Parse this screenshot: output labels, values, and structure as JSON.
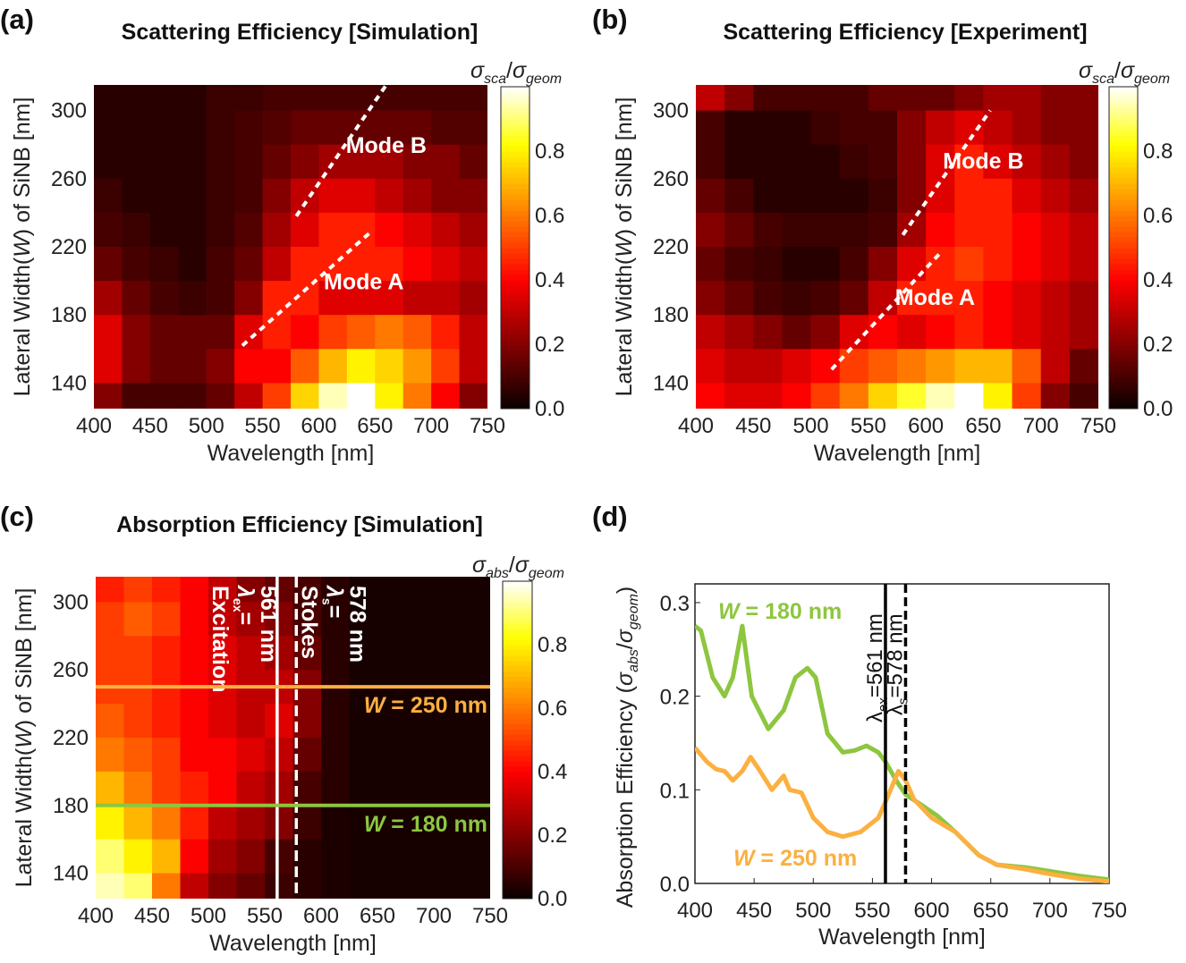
{
  "panel_labels": [
    "(a)",
    "(b)",
    "(c)",
    "(d)"
  ],
  "colors": {
    "green": "#8dc63f",
    "orange": "#fbb040",
    "white": "#ffffff",
    "black": "#000000"
  },
  "chart_data": [
    {
      "type": "heatmap",
      "title": "Scattering Efficiency [Simulation]",
      "xlabel": "Wavelength [nm]",
      "ylabel": {
        "pre": "Lateral Width(",
        "italic": "W",
        "post": ") of SiNB [nm]"
      },
      "colorbar_label": {
        "sigma1": "σ",
        "sub1": "sca",
        "slash": "/",
        "sigma2": "σ",
        "sub2": "geom"
      },
      "colormap": "hot",
      "clim": [
        0,
        1
      ],
      "colorbar_ticks": [
        "0.0",
        "0.2",
        "0.4",
        "0.6",
        "0.8"
      ],
      "xlim": [
        400,
        750
      ],
      "ylim": [
        125,
        315
      ],
      "xticks": [
        400,
        450,
        500,
        550,
        600,
        650,
        700,
        750
      ],
      "yticks": [
        140,
        180,
        220,
        260,
        300
      ],
      "x": [
        412.5,
        437.5,
        462.5,
        487.5,
        512.5,
        537.5,
        562.5,
        587.5,
        612.5,
        637.5,
        662.5,
        687.5,
        712.5,
        737.5
      ],
      "y": [
        310,
        290,
        270,
        250,
        230,
        210,
        190,
        170,
        150,
        130
      ],
      "z": [
        [
          0.05,
          0.05,
          0.05,
          0.05,
          0.08,
          0.08,
          0.1,
          0.1,
          0.1,
          0.1,
          0.1,
          0.1,
          0.1,
          0.1
        ],
        [
          0.05,
          0.05,
          0.05,
          0.05,
          0.08,
          0.1,
          0.12,
          0.15,
          0.15,
          0.15,
          0.15,
          0.15,
          0.12,
          0.12
        ],
        [
          0.05,
          0.05,
          0.05,
          0.05,
          0.08,
          0.1,
          0.15,
          0.2,
          0.25,
          0.25,
          0.25,
          0.2,
          0.2,
          0.15
        ],
        [
          0.08,
          0.05,
          0.05,
          0.05,
          0.08,
          0.1,
          0.2,
          0.3,
          0.35,
          0.35,
          0.3,
          0.25,
          0.2,
          0.2
        ],
        [
          0.1,
          0.08,
          0.05,
          0.05,
          0.08,
          0.12,
          0.25,
          0.35,
          0.45,
          0.45,
          0.4,
          0.35,
          0.3,
          0.25
        ],
        [
          0.15,
          0.1,
          0.08,
          0.05,
          0.1,
          0.15,
          0.3,
          0.45,
          0.45,
          0.45,
          0.45,
          0.4,
          0.35,
          0.3
        ],
        [
          0.25,
          0.15,
          0.1,
          0.08,
          0.1,
          0.2,
          0.45,
          0.45,
          0.35,
          0.35,
          0.35,
          0.3,
          0.3,
          0.25
        ],
        [
          0.35,
          0.2,
          0.15,
          0.15,
          0.15,
          0.35,
          0.45,
          0.4,
          0.5,
          0.55,
          0.6,
          0.55,
          0.45,
          0.3
        ],
        [
          0.35,
          0.2,
          0.15,
          0.15,
          0.2,
          0.4,
          0.4,
          0.55,
          0.7,
          0.8,
          0.75,
          0.65,
          0.5,
          0.3
        ],
        [
          0.2,
          0.1,
          0.1,
          0.1,
          0.15,
          0.3,
          0.5,
          0.75,
          0.95,
          1.0,
          0.8,
          0.6,
          0.4,
          0.2
        ]
      ],
      "annotations": [
        {
          "text": "Mode B",
          "line": [
            [
              580,
              238
            ],
            [
              660,
              315
            ]
          ],
          "label_at": [
            660,
            275
          ]
        },
        {
          "text": "Mode A",
          "line": [
            [
              532,
              162
            ],
            [
              645,
              228
            ]
          ],
          "label_at": [
            640,
            195
          ]
        }
      ]
    },
    {
      "type": "heatmap",
      "title": "Scattering Efficiency [Experiment]",
      "xlabel": "Wavelength [nm]",
      "ylabel": {
        "pre": "Lateral Width(",
        "italic": "W",
        "post": ") of SiNB [nm]"
      },
      "colorbar_label": {
        "sigma1": "σ",
        "sub1": "sca",
        "slash": "/",
        "sigma2": "σ",
        "sub2": "geom"
      },
      "colormap": "hot",
      "clim": [
        0,
        1
      ],
      "colorbar_ticks": [
        "0.0",
        "0.2",
        "0.4",
        "0.6",
        "0.8"
      ],
      "xlim": [
        400,
        750
      ],
      "ylim": [
        125,
        315
      ],
      "xticks": [
        400,
        450,
        500,
        550,
        600,
        650,
        700,
        750
      ],
      "yticks": [
        140,
        180,
        220,
        260,
        300
      ],
      "x": [
        412.5,
        437.5,
        462.5,
        487.5,
        512.5,
        537.5,
        562.5,
        587.5,
        612.5,
        637.5,
        662.5,
        687.5,
        712.5,
        737.5
      ],
      "y": [
        310,
        290,
        270,
        250,
        230,
        210,
        190,
        170,
        150,
        130
      ],
      "z": [
        [
          0.3,
          0.2,
          0.1,
          0.1,
          0.1,
          0.1,
          0.15,
          0.15,
          0.15,
          0.2,
          0.25,
          0.25,
          0.2,
          0.2
        ],
        [
          0.1,
          0.05,
          0.05,
          0.05,
          0.08,
          0.1,
          0.1,
          0.2,
          0.3,
          0.35,
          0.3,
          0.25,
          0.2,
          0.2
        ],
        [
          0.1,
          0.05,
          0.05,
          0.05,
          0.05,
          0.08,
          0.1,
          0.2,
          0.35,
          0.45,
          0.35,
          0.3,
          0.25,
          0.2
        ],
        [
          0.15,
          0.1,
          0.05,
          0.05,
          0.05,
          0.05,
          0.08,
          0.2,
          0.35,
          0.45,
          0.45,
          0.35,
          0.3,
          0.25
        ],
        [
          0.2,
          0.15,
          0.1,
          0.08,
          0.08,
          0.08,
          0.1,
          0.25,
          0.4,
          0.45,
          0.45,
          0.4,
          0.35,
          0.3
        ],
        [
          0.15,
          0.1,
          0.08,
          0.05,
          0.05,
          0.1,
          0.2,
          0.35,
          0.45,
          0.5,
          0.45,
          0.4,
          0.35,
          0.3
        ],
        [
          0.2,
          0.15,
          0.1,
          0.08,
          0.1,
          0.15,
          0.3,
          0.45,
          0.45,
          0.45,
          0.4,
          0.35,
          0.3,
          0.25
        ],
        [
          0.3,
          0.25,
          0.2,
          0.15,
          0.2,
          0.35,
          0.4,
          0.35,
          0.4,
          0.45,
          0.4,
          0.35,
          0.3,
          0.25
        ],
        [
          0.35,
          0.3,
          0.3,
          0.35,
          0.4,
          0.5,
          0.55,
          0.6,
          0.65,
          0.7,
          0.7,
          0.55,
          0.3,
          0.15
        ],
        [
          0.4,
          0.35,
          0.35,
          0.4,
          0.5,
          0.6,
          0.75,
          0.85,
          0.95,
          1.0,
          0.8,
          0.5,
          0.2,
          0.1
        ]
      ],
      "annotations": [
        {
          "text": "Mode B",
          "line": [
            [
              580,
              227
            ],
            [
              656,
              300
            ]
          ],
          "label_at": [
            650,
            266
          ]
        },
        {
          "text": "Mode A",
          "line": [
            [
              518,
              148
            ],
            [
              612,
              216
            ]
          ],
          "label_at": [
            608,
            186
          ]
        }
      ]
    },
    {
      "type": "heatmap",
      "title": "Absorption Efficiency [Simulation]",
      "xlabel": "Wavelength [nm]",
      "ylabel": {
        "pre": "Lateral Width(",
        "italic": "W",
        "post": ") of SiNB [nm]"
      },
      "colorbar_label": {
        "sigma1": "σ",
        "sub1": "abs",
        "slash": "/",
        "sigma2": "σ",
        "sub2": "geom"
      },
      "colormap": "hot",
      "clim": [
        0,
        1
      ],
      "colorbar_ticks": [
        "0.0",
        "0.2",
        "0.4",
        "0.6",
        "0.8"
      ],
      "xlim": [
        400,
        750
      ],
      "ylim": [
        125,
        315
      ],
      "xticks": [
        400,
        450,
        500,
        550,
        600,
        650,
        700,
        750
      ],
      "yticks": [
        140,
        180,
        220,
        260,
        300
      ],
      "x": [
        412.5,
        437.5,
        462.5,
        487.5,
        512.5,
        537.5,
        562.5,
        587.5,
        612.5,
        637.5,
        662.5,
        687.5,
        712.5,
        737.5
      ],
      "y": [
        310,
        290,
        270,
        250,
        230,
        210,
        190,
        170,
        150,
        130
      ],
      "z": [
        [
          0.45,
          0.5,
          0.45,
          0.4,
          0.3,
          0.2,
          0.15,
          0.1,
          0.05,
          0.02,
          0.02,
          0.02,
          0.02,
          0.02
        ],
        [
          0.5,
          0.55,
          0.5,
          0.4,
          0.3,
          0.25,
          0.2,
          0.1,
          0.05,
          0.02,
          0.02,
          0.02,
          0.02,
          0.02
        ],
        [
          0.5,
          0.5,
          0.45,
          0.4,
          0.35,
          0.3,
          0.25,
          0.15,
          0.05,
          0.02,
          0.02,
          0.02,
          0.02,
          0.02
        ],
        [
          0.5,
          0.5,
          0.45,
          0.4,
          0.35,
          0.3,
          0.3,
          0.2,
          0.05,
          0.02,
          0.02,
          0.02,
          0.02,
          0.02
        ],
        [
          0.55,
          0.5,
          0.45,
          0.4,
          0.35,
          0.3,
          0.35,
          0.2,
          0.05,
          0.02,
          0.02,
          0.02,
          0.02,
          0.02
        ],
        [
          0.6,
          0.55,
          0.5,
          0.4,
          0.4,
          0.35,
          0.3,
          0.15,
          0.05,
          0.02,
          0.02,
          0.02,
          0.02,
          0.02
        ],
        [
          0.7,
          0.6,
          0.5,
          0.45,
          0.4,
          0.3,
          0.25,
          0.1,
          0.05,
          0.02,
          0.02,
          0.02,
          0.02,
          0.02
        ],
        [
          0.8,
          0.7,
          0.6,
          0.45,
          0.3,
          0.25,
          0.2,
          0.08,
          0.03,
          0.02,
          0.02,
          0.02,
          0.02,
          0.02
        ],
        [
          0.9,
          0.8,
          0.7,
          0.4,
          0.25,
          0.2,
          0.1,
          0.05,
          0.03,
          0.02,
          0.02,
          0.02,
          0.02,
          0.02
        ],
        [
          0.95,
          0.9,
          0.6,
          0.3,
          0.2,
          0.15,
          0.08,
          0.05,
          0.03,
          0.02,
          0.02,
          0.02,
          0.02,
          0.02
        ]
      ],
      "hlines": [
        {
          "W": 250,
          "color": "#fbb040",
          "label": {
            "italic": "W",
            "rest": " = 250 nm"
          }
        },
        {
          "W": 180,
          "color": "#8dc63f",
          "label": {
            "italic": "W",
            "rest": " = 180 nm"
          }
        }
      ],
      "vlines": [
        {
          "x": 561,
          "style": "solid",
          "color": "#ffffff",
          "label": {
            "line1": "Excitation",
            "line2": "λ",
            "sub": "ex",
            "eq": "=",
            "line3": "561 nm"
          }
        },
        {
          "x": 578,
          "style": "dashed",
          "color": "#ffffff",
          "label": {
            "line1": "Stokes",
            "line2": "λ",
            "sub": "s",
            "eq": "=",
            "line3": "578 nm"
          }
        }
      ]
    },
    {
      "type": "line",
      "xlabel": "Wavelength [nm]",
      "ylabel": {
        "pre": "Absorption Efficiency (",
        "sigma1": "σ",
        "sub1": "abs",
        "slash": "/",
        "sigma2": "σ",
        "sub2": "geom",
        "post": ")"
      },
      "xlim": [
        400,
        750
      ],
      "ylim": [
        0,
        0.32
      ],
      "xticks": [
        400,
        450,
        500,
        550,
        600,
        650,
        700,
        750
      ],
      "yticks": [
        "0.0",
        "0.1",
        "0.2",
        "0.3"
      ],
      "series": [
        {
          "name": {
            "italic": "W",
            "rest": " = 180 nm"
          },
          "color": "#8dc63f",
          "x": [
            400,
            405,
            415,
            425,
            432,
            440,
            448,
            462,
            475,
            485,
            495,
            502,
            512,
            525,
            535,
            545,
            555,
            561,
            570,
            578,
            590,
            605,
            620,
            640,
            655,
            680,
            700,
            725,
            750
          ],
          "y": [
            0.275,
            0.27,
            0.22,
            0.2,
            0.22,
            0.275,
            0.2,
            0.165,
            0.185,
            0.22,
            0.23,
            0.22,
            0.16,
            0.14,
            0.142,
            0.147,
            0.14,
            0.13,
            0.11,
            0.095,
            0.085,
            0.072,
            0.055,
            0.03,
            0.02,
            0.017,
            0.013,
            0.008,
            0.004
          ]
        },
        {
          "name": {
            "italic": "W",
            "rest": " = 250 nm"
          },
          "color": "#fbb040",
          "x": [
            400,
            410,
            418,
            425,
            432,
            440,
            447,
            455,
            465,
            475,
            480,
            490,
            500,
            512,
            525,
            540,
            555,
            562,
            572,
            578,
            585,
            600,
            620,
            640,
            655,
            680,
            700,
            725,
            750
          ],
          "y": [
            0.145,
            0.13,
            0.122,
            0.12,
            0.11,
            0.12,
            0.135,
            0.12,
            0.1,
            0.115,
            0.1,
            0.097,
            0.07,
            0.055,
            0.05,
            0.055,
            0.07,
            0.09,
            0.12,
            0.11,
            0.09,
            0.07,
            0.055,
            0.03,
            0.02,
            0.015,
            0.01,
            0.005,
            0.002
          ]
        }
      ],
      "vlines": [
        {
          "x": 561,
          "style": "solid",
          "label": {
            "lam": "λ",
            "sub": "ex",
            "rest": "=561 nm"
          }
        },
        {
          "x": 578,
          "style": "dashed",
          "label": {
            "lam": "λ",
            "sub": "s",
            "rest": "=578 nm"
          }
        }
      ]
    }
  ]
}
